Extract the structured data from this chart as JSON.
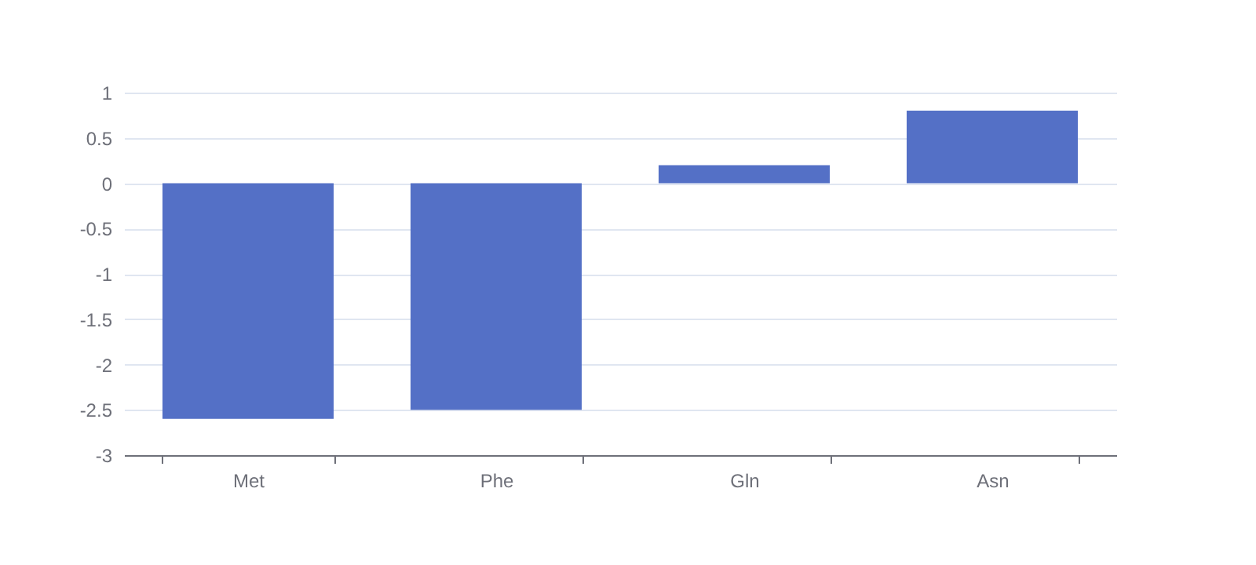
{
  "chart_data": {
    "type": "bar",
    "categories": [
      "Met",
      "Phe",
      "Gln",
      "Asn"
    ],
    "values": [
      -2.6,
      -2.5,
      0.2,
      0.8
    ],
    "color": "#5470c6",
    "ylim": [
      -3,
      1
    ],
    "yticks": [
      -3,
      -2.5,
      -2,
      -1.5,
      -1,
      -0.5,
      0,
      0.5,
      1
    ],
    "grid": "y"
  }
}
